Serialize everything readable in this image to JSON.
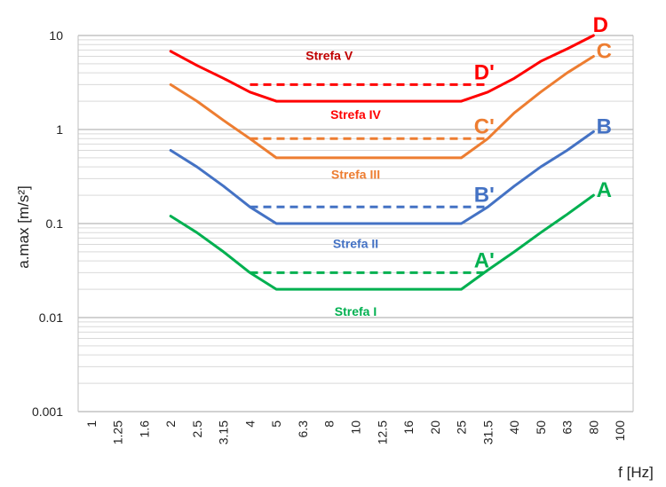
{
  "chart_data": {
    "type": "line",
    "ylabel": "a.max [m/s²]",
    "xlabel": "f [Hz]",
    "y_scale": "log",
    "ylim": [
      0.001,
      10
    ],
    "y_ticks": [
      "10",
      "1",
      "0.1",
      "0.01",
      "0.001"
    ],
    "categories": [
      "1",
      "1.25",
      "1.6",
      "2",
      "2.5",
      "3.15",
      "4",
      "5",
      "6.3",
      "8",
      "10",
      "12.5",
      "16",
      "20",
      "25",
      "31.5",
      "40",
      "50",
      "63",
      "80",
      "100"
    ],
    "grid": true,
    "series": [
      {
        "name": "A",
        "color": "#00b050",
        "dashed": false,
        "x": [
          "2",
          "2.5",
          "3.15",
          "4",
          "5",
          "6.3",
          "8",
          "10",
          "12.5",
          "16",
          "20",
          "25",
          "31.5",
          "40",
          "50",
          "63",
          "80"
        ],
        "y": [
          0.12,
          0.08,
          0.05,
          0.03,
          0.02,
          0.02,
          0.02,
          0.02,
          0.02,
          0.02,
          0.02,
          0.02,
          0.032,
          0.05,
          0.08,
          0.125,
          0.2
        ]
      },
      {
        "name": "B",
        "color": "#4472c4",
        "dashed": false,
        "x": [
          "2",
          "2.5",
          "3.15",
          "4",
          "5",
          "6.3",
          "8",
          "10",
          "12.5",
          "16",
          "20",
          "25",
          "31.5",
          "40",
          "50",
          "63",
          "80"
        ],
        "y": [
          0.6,
          0.4,
          0.25,
          0.15,
          0.1,
          0.1,
          0.1,
          0.1,
          0.1,
          0.1,
          0.1,
          0.1,
          0.15,
          0.25,
          0.4,
          0.6,
          0.95
        ]
      },
      {
        "name": "C",
        "color": "#ed7d31",
        "dashed": false,
        "x": [
          "2",
          "2.5",
          "3.15",
          "4",
          "5",
          "6.3",
          "8",
          "10",
          "12.5",
          "16",
          "20",
          "25",
          "31.5",
          "40",
          "50",
          "63",
          "80"
        ],
        "y": [
          3,
          2,
          1.25,
          0.8,
          0.5,
          0.5,
          0.5,
          0.5,
          0.5,
          0.5,
          0.5,
          0.5,
          0.8,
          1.5,
          2.5,
          4,
          6
        ]
      },
      {
        "name": "D",
        "color": "#ff0000",
        "dashed": false,
        "x": [
          "2",
          "2.5",
          "3.15",
          "4",
          "5",
          "6.3",
          "8",
          "10",
          "12.5",
          "16",
          "20",
          "25",
          "31.5",
          "40",
          "50",
          "63",
          "80"
        ],
        "y": [
          6.8,
          4.8,
          3.5,
          2.5,
          2,
          2,
          2,
          2,
          2,
          2,
          2,
          2,
          2.5,
          3.5,
          5.3,
          7.2,
          10
        ]
      },
      {
        "name": "A'",
        "color": "#00b050",
        "dashed": true,
        "x": [
          "4",
          "31.5"
        ],
        "y": [
          0.03,
          0.03
        ]
      },
      {
        "name": "B'",
        "color": "#4472c4",
        "dashed": true,
        "x": [
          "4",
          "31.5"
        ],
        "y": [
          0.15,
          0.15
        ]
      },
      {
        "name": "C'",
        "color": "#ed7d31",
        "dashed": true,
        "x": [
          "4",
          "31.5"
        ],
        "y": [
          0.8,
          0.8
        ]
      },
      {
        "name": "D'",
        "color": "#ff0000",
        "dashed": true,
        "x": [
          "4",
          "31.5"
        ],
        "y": [
          3,
          3
        ]
      }
    ],
    "zone_labels": [
      {
        "text": "Strefa V",
        "color": "#c00000",
        "x": "8",
        "y": 5.5
      },
      {
        "text": "Strefa IV",
        "color": "#ff0000",
        "x": "10",
        "y": 1.3
      },
      {
        "text": "Strefa III",
        "color": "#ed7d31",
        "x": "10",
        "y": 0.3
      },
      {
        "text": "Strefa II",
        "color": "#4472c4",
        "x": "10",
        "y": 0.055
      },
      {
        "text": "Strefa I",
        "color": "#00b050",
        "x": "10",
        "y": 0.0105
      }
    ]
  }
}
